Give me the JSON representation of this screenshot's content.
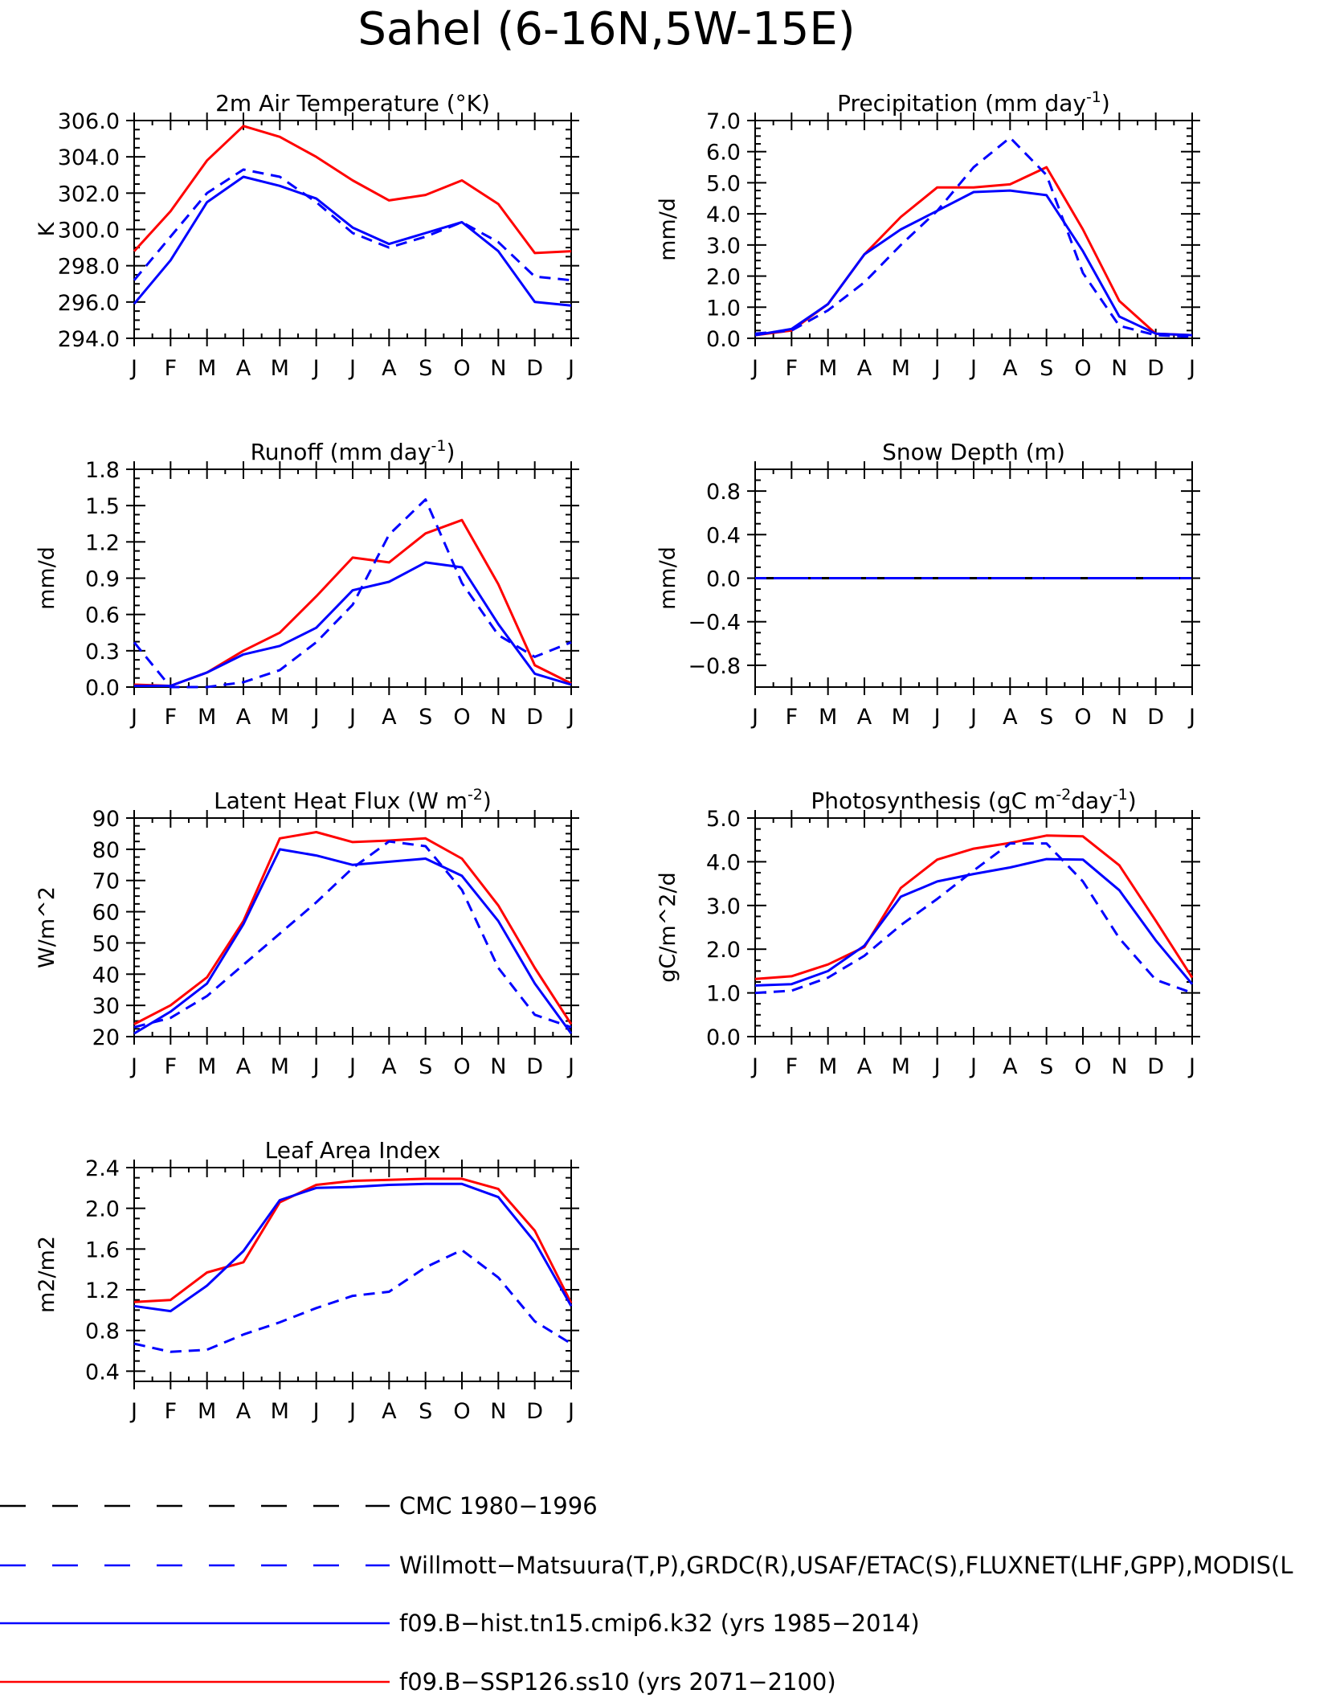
{
  "title": "Sahel (6-16N,5W-15E)",
  "colors": {
    "obs": "#0000ff",
    "hist": "#0000ff",
    "ssp": "#ff0000",
    "cmc": "#000000"
  },
  "chart_data": [
    {
      "type": "line",
      "title": "2m Air Temperature (°K)",
      "ylabel": "K",
      "xticks": [
        "J",
        "F",
        "M",
        "A",
        "M",
        "J",
        "J",
        "A",
        "S",
        "O",
        "N",
        "D",
        "J"
      ],
      "ylim": [
        294.0,
        306.0
      ],
      "yticks": [
        "294.0",
        "296.0",
        "298.0",
        "300.0",
        "302.0",
        "304.0",
        "306.0"
      ],
      "series": [
        {
          "name": "f09.B-SSP126.ss10 (yrs 2071-2100)",
          "style": "ssp",
          "values": [
            298.8,
            301.0,
            303.8,
            305.7,
            305.1,
            304.0,
            302.7,
            301.6,
            301.9,
            302.7,
            301.4,
            298.7,
            298.8
          ]
        },
        {
          "name": "f09.B-hist.tn15.cmip6.k32 (yrs 1985-2014)",
          "style": "hist",
          "values": [
            295.9,
            298.3,
            301.5,
            302.9,
            302.4,
            301.7,
            300.1,
            299.2,
            299.8,
            300.4,
            298.8,
            296.0,
            295.8
          ]
        },
        {
          "name": "Willmott-Matsuura(T,P),GRDC(R),USAF/ETAC(S),FLUXNET(LHF,GPP),MODIS(L",
          "style": "obs",
          "values": [
            297.2,
            299.6,
            302.0,
            303.3,
            302.9,
            301.5,
            299.8,
            299.0,
            299.6,
            300.4,
            299.3,
            297.4,
            297.2
          ]
        }
      ]
    },
    {
      "type": "line",
      "title": "Precipitation (mm day",
      "title_sup": "-1",
      "title_end": ")",
      "ylabel": "mm/d",
      "xticks": [
        "J",
        "F",
        "M",
        "A",
        "M",
        "J",
        "J",
        "A",
        "S",
        "O",
        "N",
        "D",
        "J"
      ],
      "ylim": [
        0.0,
        7.0
      ],
      "yticks": [
        "0.0",
        "1.0",
        "2.0",
        "3.0",
        "4.0",
        "5.0",
        "6.0",
        "7.0"
      ],
      "series": [
        {
          "name": "f09.B-SSP126.ss10 (yrs 2071-2100)",
          "style": "ssp",
          "values": [
            0.1,
            0.25,
            1.1,
            2.7,
            3.9,
            4.85,
            4.85,
            4.95,
            5.5,
            3.5,
            1.2,
            0.15,
            0.1
          ]
        },
        {
          "name": "f09.B-hist.tn15.cmip6.k32 (yrs 1985-2014)",
          "style": "hist",
          "values": [
            0.1,
            0.3,
            1.1,
            2.7,
            3.5,
            4.1,
            4.7,
            4.75,
            4.6,
            2.8,
            0.7,
            0.15,
            0.1
          ]
        },
        {
          "name": "Willmott-Matsuura(T,P),GRDC(R),USAF/ETAC(S),FLUXNET(LHF,GPP),MODIS(L",
          "style": "obs",
          "values": [
            0.15,
            0.25,
            0.9,
            1.8,
            3.0,
            4.1,
            5.5,
            6.45,
            5.25,
            2.1,
            0.4,
            0.1,
            0.05
          ]
        }
      ]
    },
    {
      "type": "line",
      "title": "Runoff (mm day",
      "title_sup": "-1",
      "title_end": ")",
      "ylabel": "mm/d",
      "xticks": [
        "J",
        "F",
        "M",
        "A",
        "M",
        "J",
        "J",
        "A",
        "S",
        "O",
        "N",
        "D",
        "J"
      ],
      "ylim": [
        0.0,
        1.8
      ],
      "yticks": [
        "0.0",
        "0.3",
        "0.6",
        "0.9",
        "1.2",
        "1.5",
        "1.8"
      ],
      "series": [
        {
          "name": "f09.B-SSP126.ss10 (yrs 2071-2100)",
          "style": "ssp",
          "values": [
            0.02,
            0.01,
            0.12,
            0.3,
            0.45,
            0.75,
            1.07,
            1.03,
            1.27,
            1.38,
            0.85,
            0.18,
            0.03
          ]
        },
        {
          "name": "f09.B-hist.tn15.cmip6.k32 (yrs 1985-2014)",
          "style": "hist",
          "values": [
            0.01,
            0.01,
            0.12,
            0.27,
            0.34,
            0.49,
            0.8,
            0.87,
            1.03,
            0.99,
            0.52,
            0.11,
            0.02
          ]
        },
        {
          "name": "Willmott-Matsuura(T,P),GRDC(R),USAF/ETAC(S),FLUXNET(LHF,GPP),MODIS(L",
          "style": "obs",
          "values": [
            0.37,
            0.0,
            0.0,
            0.04,
            0.14,
            0.37,
            0.68,
            1.26,
            1.55,
            0.86,
            0.43,
            0.25,
            0.37
          ]
        }
      ]
    },
    {
      "type": "line",
      "title": "Snow Depth (m)",
      "ylabel": "mm/d",
      "xticks": [
        "J",
        "F",
        "M",
        "A",
        "M",
        "J",
        "J",
        "A",
        "S",
        "O",
        "N",
        "D",
        "J"
      ],
      "ylim": [
        -1.0,
        1.0
      ],
      "yticks": [
        "−0.8",
        "−0.4",
        "0.0",
        "0.4",
        "0.8"
      ],
      "ytick_values": [
        -0.8,
        -0.4,
        0.0,
        0.4,
        0.8
      ],
      "series": [
        {
          "name": "f09.B-SSP126.ss10 (yrs 2071-2100)",
          "style": "ssp",
          "values": [
            0,
            0,
            0,
            0,
            0,
            0,
            0,
            0,
            0,
            0,
            0,
            0,
            0
          ]
        },
        {
          "name": "f09.B-hist.tn15.cmip6.k32 (yrs 1985-2014)",
          "style": "hist",
          "values": [
            0,
            0,
            0,
            0,
            0,
            0,
            0,
            0,
            0,
            0,
            0,
            0,
            0
          ]
        },
        {
          "name": "CMC 1980-1996",
          "style": "cmc",
          "values": [
            0,
            0,
            0,
            0,
            0,
            0,
            0,
            0,
            0,
            0,
            0,
            0,
            0
          ]
        },
        {
          "name": "Willmott-Matsuura(T,P),GRDC(R),USAF/ETAC(S),FLUXNET(LHF,GPP),MODIS(L",
          "style": "obs",
          "values": [
            0,
            0,
            0,
            0,
            0,
            0,
            0,
            0,
            0,
            0,
            0,
            0,
            0
          ]
        }
      ]
    },
    {
      "type": "line",
      "title": "Latent Heat Flux (W m",
      "title_sup": "-2",
      "title_end": ")",
      "ylabel": "W/m^2",
      "xticks": [
        "J",
        "F",
        "M",
        "A",
        "M",
        "J",
        "J",
        "A",
        "S",
        "O",
        "N",
        "D",
        "J"
      ],
      "ylim": [
        20,
        90
      ],
      "yticks": [
        "20",
        "30",
        "40",
        "50",
        "60",
        "70",
        "80",
        "90"
      ],
      "series": [
        {
          "name": "f09.B-SSP126.ss10 (yrs 2071-2100)",
          "style": "ssp",
          "values": [
            24,
            30,
            39,
            57,
            83.5,
            85.5,
            82.3,
            82.8,
            83.5,
            77,
            62,
            42,
            24
          ]
        },
        {
          "name": "f09.B-hist.tn15.cmip6.k32 (yrs 1985-2014)",
          "style": "hist",
          "values": [
            21,
            28,
            37,
            56,
            80,
            78,
            75,
            76,
            77,
            71.5,
            57,
            37,
            21
          ]
        },
        {
          "name": "Willmott-Matsuura(T,P),GRDC(R),USAF/ETAC(S),FLUXNET(LHF,GPP),MODIS(L",
          "style": "obs",
          "values": [
            23,
            26,
            33,
            43,
            53,
            63,
            74,
            82.5,
            81,
            67,
            42,
            27,
            23
          ]
        }
      ]
    },
    {
      "type": "line",
      "title": "Photosynthesis (gC m",
      "title_sup": "-2",
      "title_mid": "day",
      "title_sup2": "-1",
      "title_end": ")",
      "ylabel": "gC/m^2/d",
      "xticks": [
        "J",
        "F",
        "M",
        "A",
        "M",
        "J",
        "J",
        "A",
        "S",
        "O",
        "N",
        "D",
        "J"
      ],
      "ylim": [
        0.0,
        5.0
      ],
      "yticks": [
        "0.0",
        "1.0",
        "2.0",
        "3.0",
        "4.0",
        "5.0"
      ],
      "series": [
        {
          "name": "f09.B-SSP126.ss10 (yrs 2071-2100)",
          "style": "ssp",
          "values": [
            1.32,
            1.38,
            1.65,
            2.05,
            3.4,
            4.05,
            4.3,
            4.43,
            4.6,
            4.58,
            3.92,
            2.65,
            1.35
          ]
        },
        {
          "name": "f09.B-hist.tn15.cmip6.k32 (yrs 1985-2014)",
          "style": "hist",
          "values": [
            1.17,
            1.2,
            1.5,
            2.08,
            3.2,
            3.55,
            3.72,
            3.87,
            4.06,
            4.05,
            3.35,
            2.2,
            1.2
          ]
        },
        {
          "name": "Willmott-Matsuura(T,P),GRDC(R),USAF/ETAC(S),FLUXNET(LHF,GPP),MODIS(L",
          "style": "obs",
          "values": [
            1.0,
            1.05,
            1.35,
            1.85,
            2.55,
            3.15,
            3.8,
            4.42,
            4.42,
            3.55,
            2.25,
            1.3,
            1.0
          ]
        }
      ]
    },
    {
      "type": "line",
      "title": "Leaf Area Index",
      "ylabel": "m2/m2",
      "xticks": [
        "J",
        "F",
        "M",
        "A",
        "M",
        "J",
        "J",
        "A",
        "S",
        "O",
        "N",
        "D",
        "J"
      ],
      "ylim": [
        0.3,
        2.4
      ],
      "yticks": [
        "0.4",
        "0.8",
        "1.2",
        "1.6",
        "2.0",
        "2.4"
      ],
      "ytick_values": [
        0.4,
        0.8,
        1.2,
        1.6,
        2.0,
        2.4
      ],
      "series": [
        {
          "name": "f09.B-SSP126.ss10 (yrs 2071-2100)",
          "style": "ssp",
          "values": [
            1.08,
            1.1,
            1.37,
            1.47,
            2.06,
            2.23,
            2.27,
            2.28,
            2.29,
            2.29,
            2.19,
            1.78,
            1.07
          ]
        },
        {
          "name": "f09.B-hist.tn15.cmip6.k32 (yrs 1985-2014)",
          "style": "hist",
          "values": [
            1.04,
            0.99,
            1.24,
            1.58,
            2.08,
            2.2,
            2.21,
            2.23,
            2.24,
            2.24,
            2.11,
            1.67,
            1.04
          ]
        },
        {
          "name": "Willmott-Matsuura(T,P),GRDC(R),USAF/ETAC(S),FLUXNET(LHF,GPP),MODIS(L",
          "style": "obs",
          "values": [
            0.67,
            0.59,
            0.61,
            0.76,
            0.88,
            1.02,
            1.14,
            1.18,
            1.42,
            1.59,
            1.32,
            0.89,
            0.67
          ]
        }
      ]
    }
  ],
  "legend": [
    {
      "label": "CMC 1980−1996",
      "style": "cmc"
    },
    {
      "label": "Willmott−Matsuura(T,P),GRDC(R),USAF/ETAC(S),FLUXNET(LHF,GPP),MODIS(L",
      "style": "obs"
    },
    {
      "label": "f09.B−hist.tn15.cmip6.k32 (yrs 1985−2014)",
      "style": "hist"
    },
    {
      "label": "f09.B−SSP126.ss10 (yrs 2071−2100)",
      "style": "ssp"
    }
  ]
}
